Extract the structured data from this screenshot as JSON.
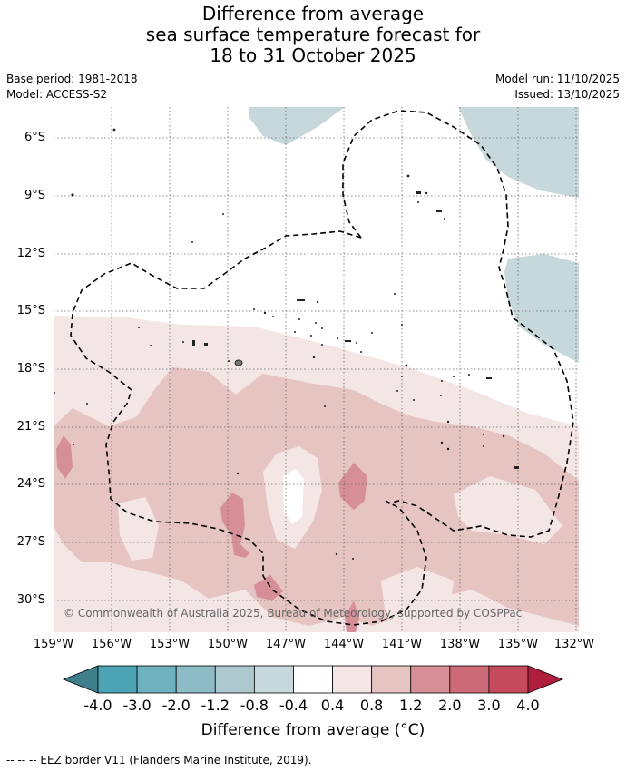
{
  "title_lines": [
    "Difference from average",
    "sea surface temperature forecast for",
    "18 to 31 October 2025"
  ],
  "meta": {
    "base_period": "Base period: 1981-2018",
    "model": "Model: ACCESS-S2",
    "model_run": "Model run: 11/10/2025",
    "issued": "Issued: 13/10/2025"
  },
  "lat_labels": [
    "6°S",
    "9°S",
    "12°S",
    "15°S",
    "18°S",
    "21°S",
    "24°S",
    "27°S",
    "30°S"
  ],
  "lon_labels": [
    "159°W",
    "156°W",
    "153°W",
    "150°W",
    "147°W",
    "144°W",
    "141°W",
    "138°W",
    "135°W",
    "132°W"
  ],
  "copyright": "© Commonwealth of Australia 2025, Bureau of Meteorology, supported by COSPPac",
  "colorbar": {
    "title": "Difference from average (°C)",
    "tick_labels": [
      "-4.0",
      "-3.0",
      "-2.0",
      "-1.2",
      "-0.8",
      "-0.4",
      "0.4",
      "0.8",
      "1.2",
      "2.0",
      "3.0",
      "4.0"
    ],
    "colors": [
      "#3f7f8c",
      "#4ca4b4",
      "#6fb1bf",
      "#8dbcc6",
      "#adc8cf",
      "#c6d8dc",
      "#ffffff",
      "#f4e6e5",
      "#e6c4c2",
      "#d68f97",
      "#cd6a78",
      "#c44a5c",
      "#b01e3e"
    ]
  },
  "footnote": "-- -- -- EEZ border V11 (Flanders Marine Institute, 2019)."
}
